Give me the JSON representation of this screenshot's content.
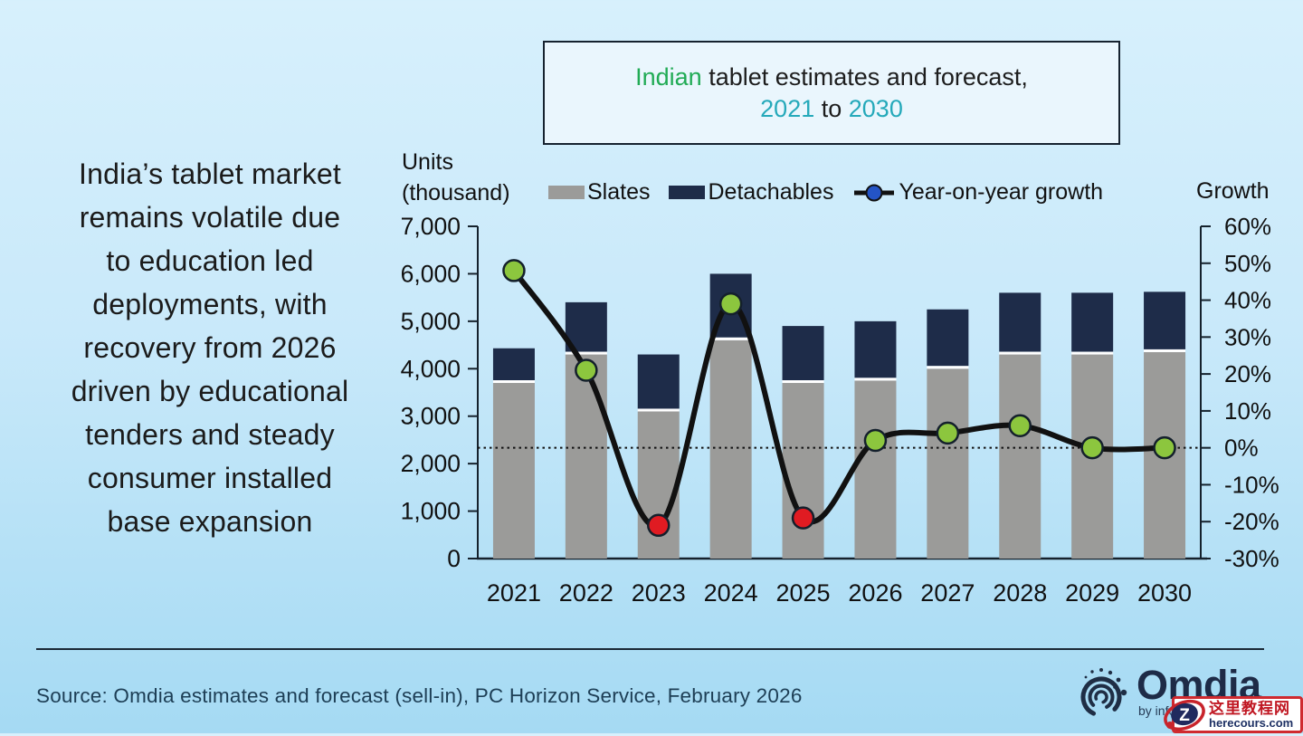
{
  "title": {
    "line1_green": "Indian",
    "line1_rest": " tablet estimates and forecast,",
    "line2_teal1": "2021",
    "line2_mid": " to ",
    "line2_teal2": "2030"
  },
  "colors": {
    "title_green": "#21ab55",
    "title_teal": "#25a9ba",
    "bar_slates": "#9b9b99",
    "bar_detachables": "#1e2c49",
    "growth_line": "#111111",
    "marker_positive": "#8cc63e",
    "marker_negative": "#e01b22",
    "legend_dot_blue": "#2454c6"
  },
  "left_text": "India’s tablet market\nremains volatile due\nto education led\ndeployments, with\nrecovery from 2026\ndriven by educational\ntenders and steady\nconsumer installed\nbase expansion",
  "axes": {
    "left_title": "Units\n(thousand)",
    "right_title": "Growth"
  },
  "source": "Source: Omdia estimates and forecast (sell-in), PC Horizon Service, February 2026",
  "brand": {
    "name": "Omdia",
    "tagline": "by informa"
  },
  "watermark": {
    "letter": "Z",
    "cn": "这里教程网",
    "site": "herecours.com"
  },
  "chart_data": {
    "type": "combo: stacked bar + line",
    "categories": [
      "2021",
      "2022",
      "2023",
      "2024",
      "2025",
      "2026",
      "2027",
      "2028",
      "2029",
      "2030"
    ],
    "series": [
      {
        "name": "Slates",
        "type": "bar",
        "stacked": true,
        "color": "#9b9b99",
        "values": [
          3700,
          4300,
          3100,
          4600,
          3700,
          3750,
          4000,
          4300,
          4300,
          4350
        ]
      },
      {
        "name": "Detachables",
        "type": "bar",
        "stacked": true,
        "color": "#1e2c49",
        "values": [
          730,
          1100,
          1200,
          1400,
          1200,
          1250,
          1250,
          1300,
          1300,
          1270
        ]
      },
      {
        "name": "Year-on-year growth",
        "type": "line",
        "axis": "right",
        "color": "#111111",
        "values": [
          48,
          21,
          -21,
          39,
          -19,
          2,
          4,
          6,
          0,
          0
        ],
        "marker_fills": [
          "#8cc63e",
          "#8cc63e",
          "#e01b22",
          "#8cc63e",
          "#e01b22",
          "#8cc63e",
          "#8cc63e",
          "#8cc63e",
          "#8cc63e",
          "#8cc63e"
        ]
      }
    ],
    "stacked_totals": [
      4430,
      5400,
      4300,
      6000,
      4900,
      5000,
      5250,
      5600,
      5600,
      5620
    ],
    "left_axis": {
      "title": "Units (thousand)",
      "min": 0,
      "max": 7000,
      "tick_values": [
        0,
        1000,
        2000,
        3000,
        4000,
        5000,
        6000,
        7000
      ],
      "tick_labels": [
        "0",
        "1,000",
        "2,000",
        "3,000",
        "4,000",
        "5,000",
        "6,000",
        "7,000"
      ]
    },
    "right_axis": {
      "title": "Growth",
      "min": -30,
      "max": 60,
      "tick_values": [
        -30,
        -20,
        -10,
        0,
        10,
        20,
        30,
        40,
        50,
        60
      ],
      "tick_labels": [
        "-30%",
        "-20%",
        "-10%",
        "0%",
        "10%",
        "20%",
        "30%",
        "40%",
        "50%",
        "60%"
      ]
    },
    "zero_line": {
      "value_pct": 0,
      "style": "dotted"
    },
    "grid": false,
    "legend_position": "top"
  }
}
